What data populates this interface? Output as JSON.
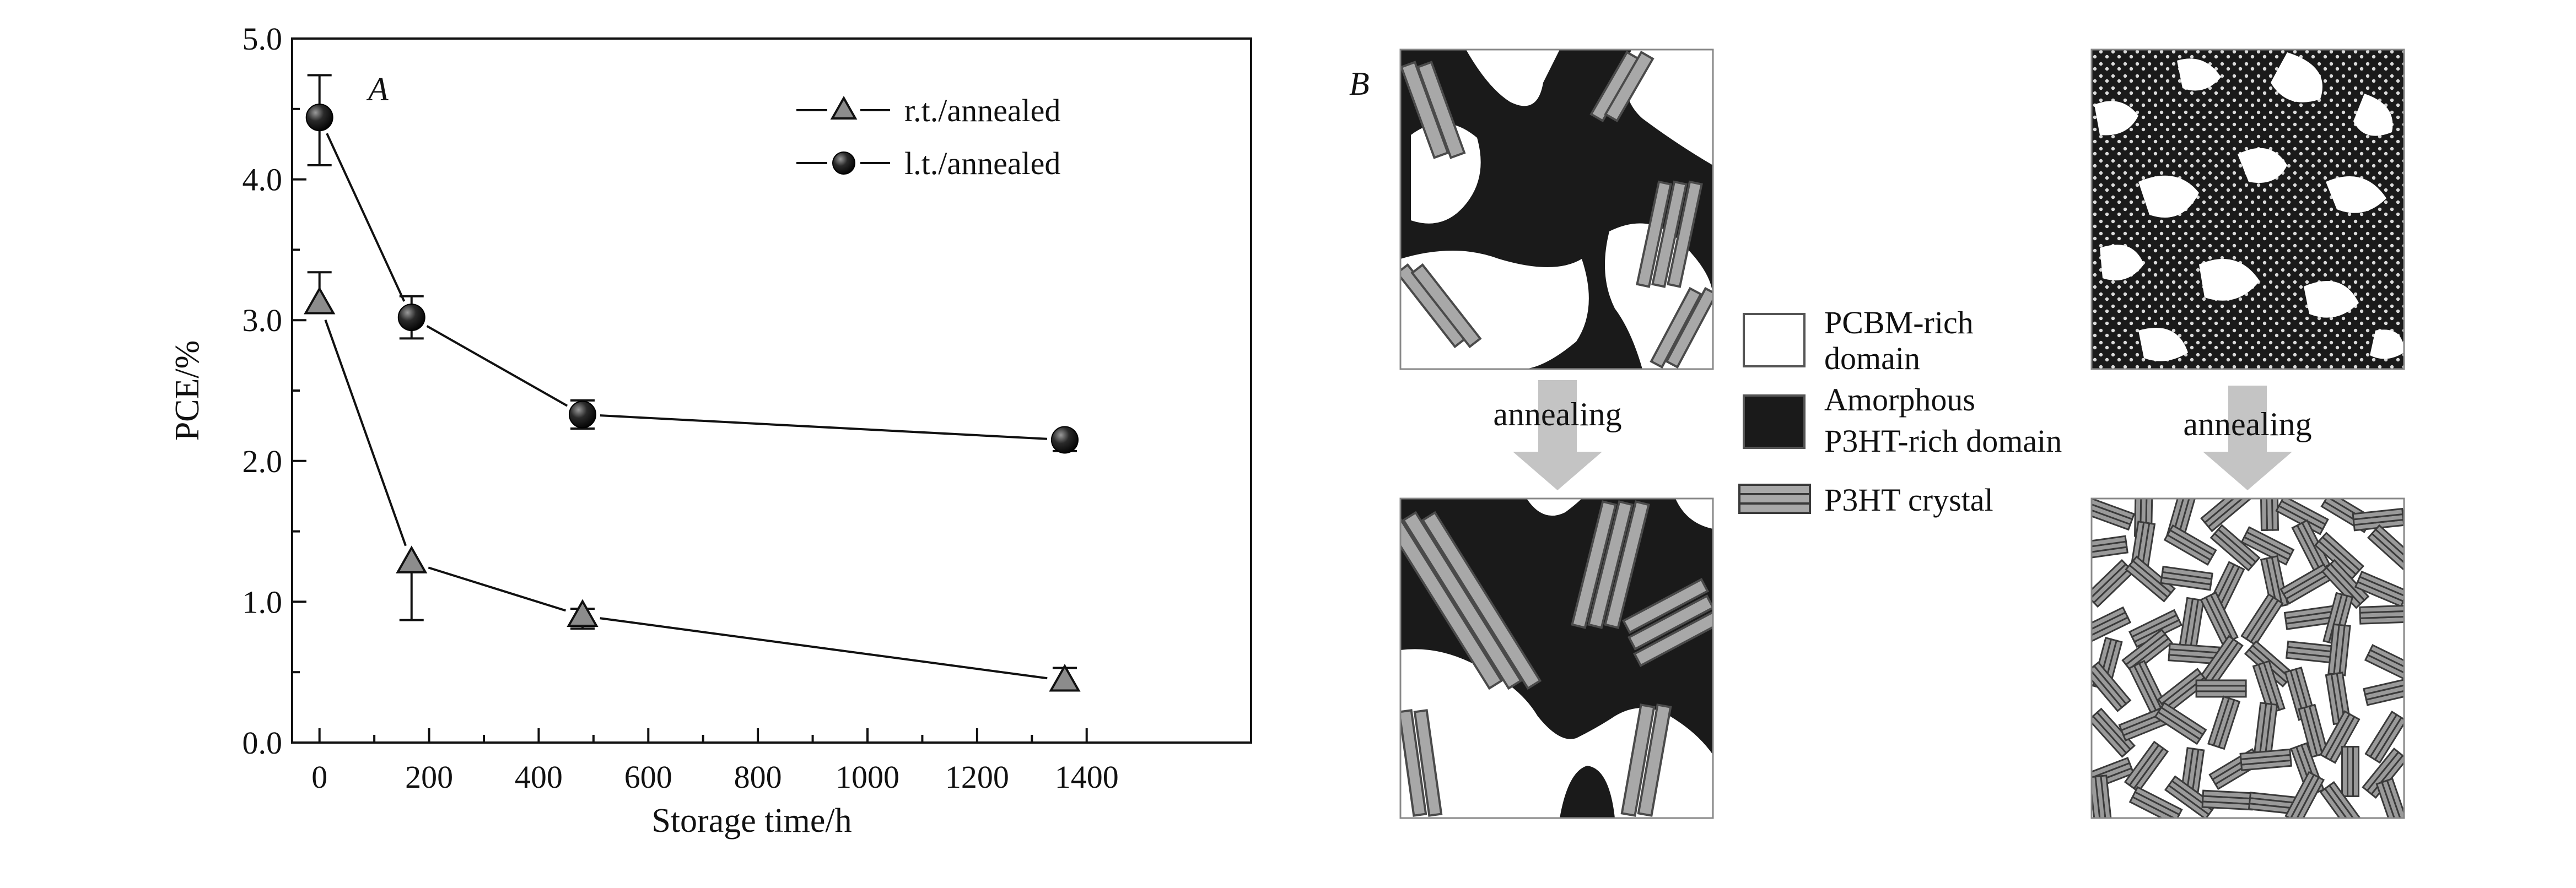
{
  "figure": {
    "panel_a_label": "A",
    "panel_b_label": "B"
  },
  "chart_data": {
    "type": "line",
    "xlabel": "Storage time/h",
    "ylabel": "PCE/%",
    "xlim": [
      -50,
      1700
    ],
    "ylim": [
      0,
      5
    ],
    "xticks": [
      0,
      200,
      400,
      600,
      800,
      1000,
      1200,
      1400
    ],
    "yticks": [
      0,
      1,
      2,
      3,
      4,
      5
    ],
    "ytick_labels": [
      "0.0",
      "1.0",
      "2.0",
      "3.0",
      "4.0",
      "5.0"
    ],
    "grid": false,
    "legend_position": "top-right",
    "series": [
      {
        "name": "r.t./annealed",
        "marker": "triangle",
        "color": "#8a8a8a",
        "x": [
          0,
          168,
          480,
          1360
        ],
        "y": [
          3.12,
          1.28,
          0.9,
          0.44
        ],
        "err_up": [
          0.22,
          0.0,
          0.05,
          0.09
        ],
        "err_down": [
          0.0,
          0.41,
          0.09,
          0.05
        ]
      },
      {
        "name": "l.t./annealed",
        "marker": "sphere",
        "color": "#1c1c1c",
        "x": [
          0,
          168,
          480,
          1360
        ],
        "y": [
          4.44,
          3.02,
          2.33,
          2.15
        ],
        "err_up": [
          0.3,
          0.15,
          0.1,
          0.04
        ],
        "err_down": [
          0.34,
          0.15,
          0.1,
          0.08
        ]
      }
    ]
  },
  "schematic": {
    "arrow_label_left": "annealing",
    "arrow_label_right": "annealing",
    "legend": [
      {
        "kind": "pcbm",
        "label_lines": [
          "PCBM-rich",
          "domain"
        ]
      },
      {
        "kind": "amorphous",
        "label_lines": [
          "Amorphous",
          "P3HT-rich domain"
        ]
      },
      {
        "kind": "crystal",
        "label_lines": [
          "P3HT crystal"
        ]
      }
    ],
    "colors": {
      "pcbm": "#ffffff",
      "amorphous": "#1a1a1a",
      "crystal": "#9a9a9a",
      "arrow": "#c4c4c4"
    }
  }
}
